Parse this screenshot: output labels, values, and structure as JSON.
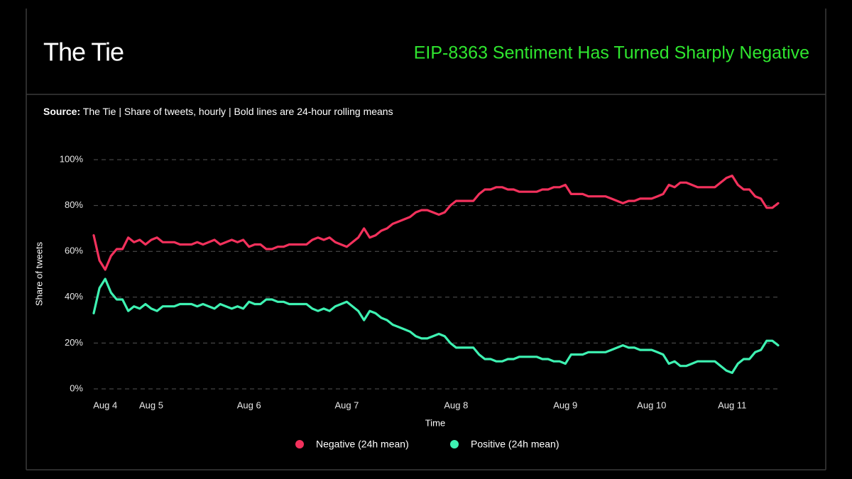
{
  "brand": "The Tie",
  "chart_data": {
    "type": "line",
    "title": "EIP-8363 Sentiment Has Turned Sharply Negative",
    "source_label": "Source:",
    "source": "The Tie | Share of tweets, hourly | Bold lines are 24-hour rolling means",
    "x_label": "Time",
    "y_label": "Share of tweets",
    "categories": [
      null,
      null,
      "Aug 4",
      null,
      null,
      null,
      null,
      null,
      null,
      null,
      "Aug 5",
      null,
      null,
      null,
      null,
      null,
      null,
      null,
      null,
      null,
      null,
      null,
      null,
      null,
      null,
      null,
      null,
      "Aug 6",
      null,
      null,
      null,
      null,
      null,
      null,
      null,
      null,
      null,
      null,
      null,
      null,
      null,
      null,
      null,
      null,
      "Aug 7",
      null,
      null,
      null,
      null,
      null,
      null,
      null,
      null,
      null,
      null,
      null,
      null,
      null,
      null,
      null,
      null,
      null,
      null,
      "Aug 8",
      null,
      null,
      null,
      null,
      null,
      null,
      null,
      null,
      null,
      null,
      null,
      null,
      null,
      null,
      null,
      null,
      null,
      null,
      "Aug 9",
      null,
      null,
      null,
      null,
      null,
      null,
      null,
      null,
      null,
      null,
      null,
      null,
      null,
      null,
      "Aug 10",
      null,
      null,
      null,
      null,
      null,
      null,
      null,
      null,
      null,
      null,
      null,
      null,
      null,
      "Aug 11",
      null,
      null,
      null,
      null,
      null,
      null,
      null,
      null
    ],
    "series": [
      {
        "name": "Negative (24h mean)",
        "color": "#f2315c",
        "values": [
          67,
          56,
          52,
          58,
          61,
          61,
          66,
          64,
          65,
          63,
          65,
          66,
          64,
          64,
          64,
          63,
          63,
          63,
          64,
          63,
          64,
          65,
          63,
          64,
          65,
          64,
          65,
          62,
          63,
          63,
          61,
          61,
          62,
          62,
          63,
          63,
          63,
          63,
          65,
          66,
          65,
          66,
          64,
          63,
          62,
          64,
          66,
          70,
          66,
          67,
          69,
          70,
          72,
          73,
          74,
          75,
          77,
          78,
          78,
          77,
          76,
          77,
          80,
          82,
          82,
          82,
          82,
          85,
          87,
          87,
          88,
          88,
          87,
          87,
          86,
          86,
          86,
          86,
          87,
          87,
          88,
          88,
          89,
          85,
          85,
          85,
          84,
          84,
          84,
          84,
          83,
          82,
          81,
          82,
          82,
          83,
          83,
          83,
          84,
          85,
          89,
          88,
          90,
          90,
          89,
          88,
          88,
          88,
          88,
          90,
          92,
          93,
          89,
          87,
          87,
          84,
          83,
          79,
          79,
          81
        ]
      },
      {
        "name": "Positive (24h mean)",
        "color": "#3ef2b2",
        "values": [
          33,
          44,
          48,
          42,
          39,
          39,
          34,
          36,
          35,
          37,
          35,
          34,
          36,
          36,
          36,
          37,
          37,
          37,
          36,
          37,
          36,
          35,
          37,
          36,
          35,
          36,
          35,
          38,
          37,
          37,
          39,
          39,
          38,
          38,
          37,
          37,
          37,
          37,
          35,
          34,
          35,
          34,
          36,
          37,
          38,
          36,
          34,
          30,
          34,
          33,
          31,
          30,
          28,
          27,
          26,
          25,
          23,
          22,
          22,
          23,
          24,
          23,
          20,
          18,
          18,
          18,
          18,
          15,
          13,
          13,
          12,
          12,
          13,
          13,
          14,
          14,
          14,
          14,
          13,
          13,
          12,
          12,
          11,
          15,
          15,
          15,
          16,
          16,
          16,
          16,
          17,
          18,
          19,
          18,
          18,
          17,
          17,
          17,
          16,
          15,
          11,
          12,
          10,
          10,
          11,
          12,
          12,
          12,
          12,
          10,
          8,
          7,
          11,
          13,
          13,
          16,
          17,
          21,
          21,
          19
        ]
      }
    ],
    "ylim": [
      0,
      100
    ],
    "yticks": [
      {
        "value": 0,
        "label": "0%"
      },
      {
        "value": 20,
        "label": "20%"
      },
      {
        "value": 40,
        "label": "40%"
      },
      {
        "value": 60,
        "label": "60%"
      },
      {
        "value": 80,
        "label": "80%"
      },
      {
        "value": 100,
        "label": "100%"
      }
    ],
    "grid": true,
    "legend": "bottom"
  }
}
